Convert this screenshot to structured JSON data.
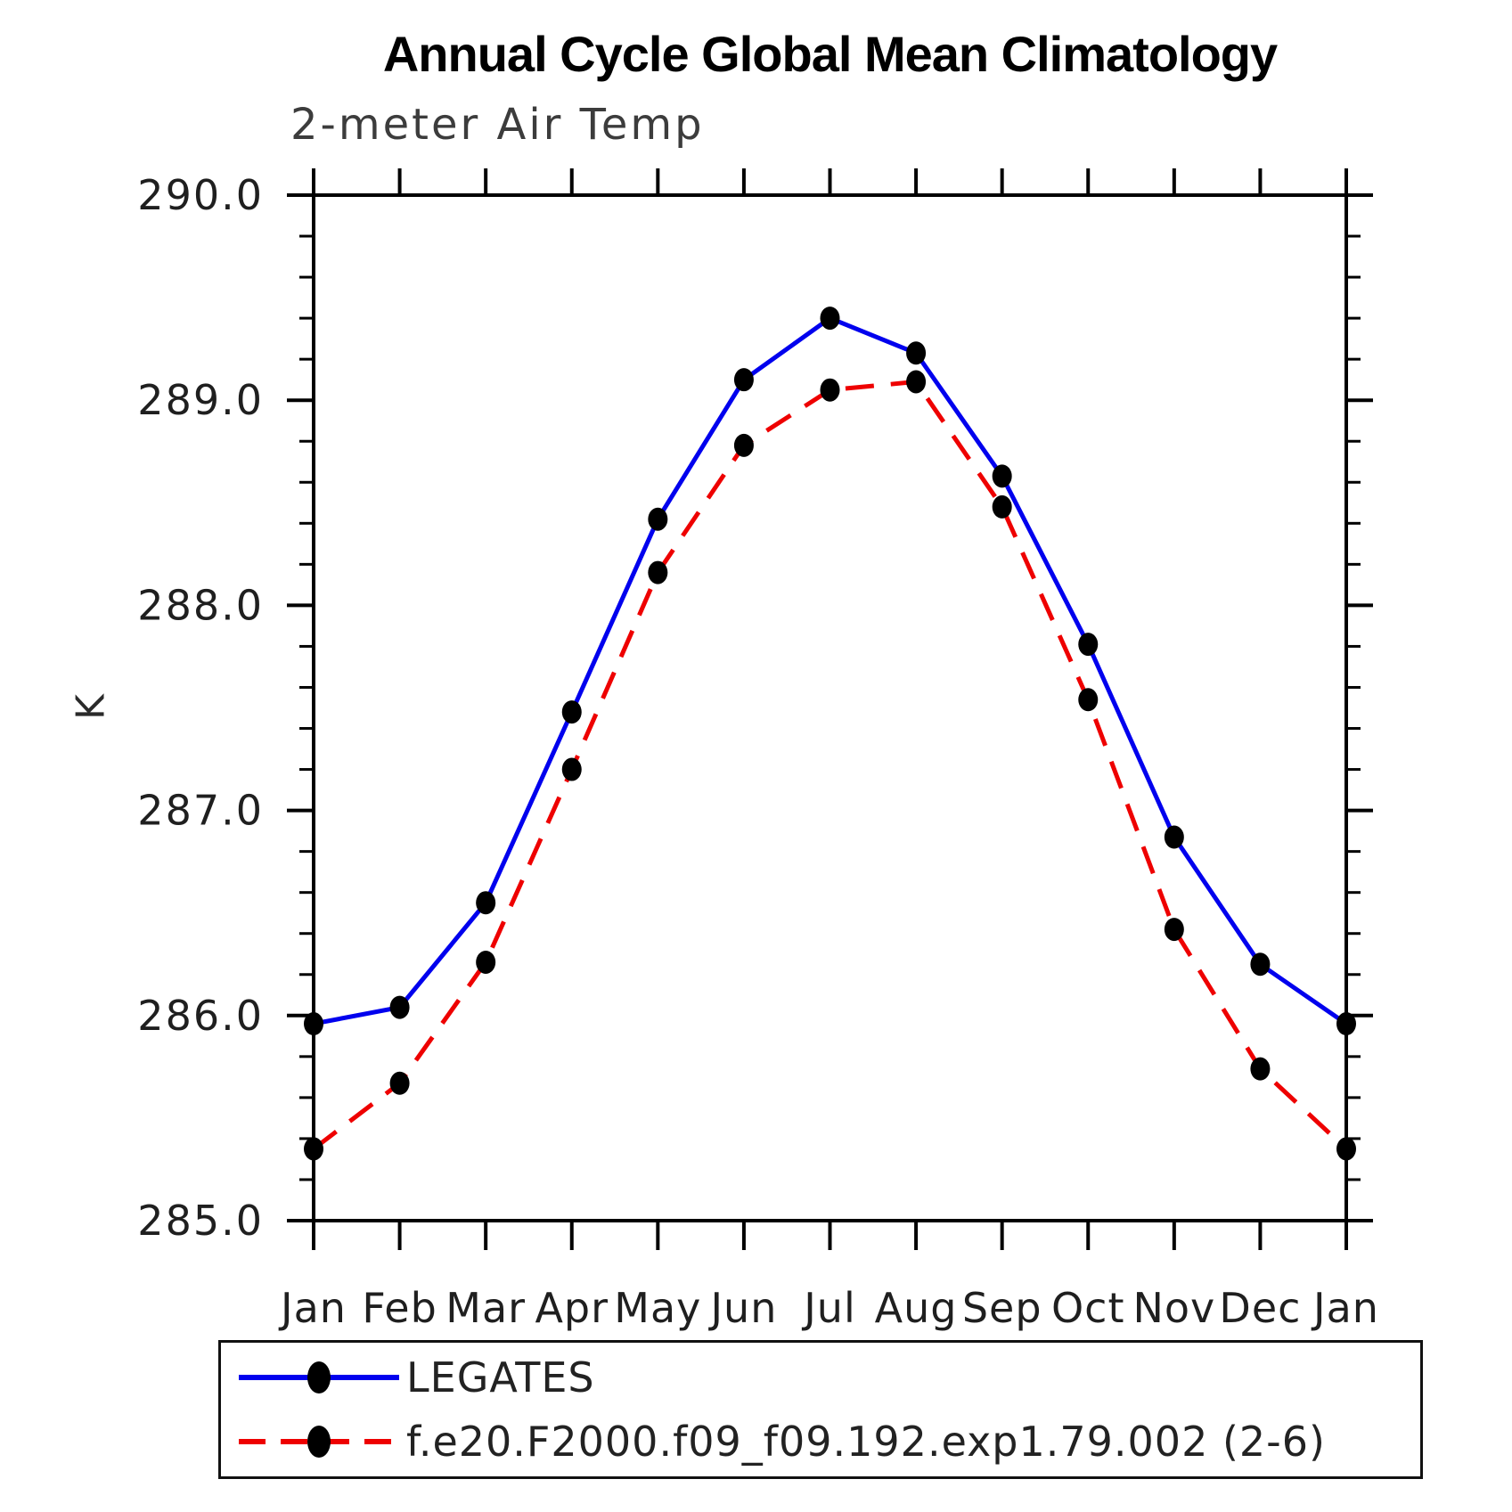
{
  "header": {
    "title": "Annual Cycle Global Mean Climatology",
    "subtitle": "2-meter Air Temp"
  },
  "chart_data": {
    "type": "line",
    "title": "Annual Cycle Global Mean Climatology",
    "subtitle": "2-meter Air Temp",
    "ylabel": "K",
    "xlabel": "",
    "categories": [
      "Jan",
      "Feb",
      "Mar",
      "Apr",
      "May",
      "Jun",
      "Jul",
      "Aug",
      "Sep",
      "Oct",
      "Nov",
      "Dec",
      "Jan"
    ],
    "ylim": [
      285.0,
      290.0
    ],
    "ytick_major_interval": 1.0,
    "ytick_minor_interval": 0.2,
    "ytick_labels": [
      "285.0",
      "286.0",
      "287.0",
      "288.0",
      "289.0",
      "290.0"
    ],
    "grid": false,
    "legend_position": "bottom",
    "axis_color": "#000000",
    "marker_color": "#000000",
    "series": [
      {
        "name": "LEGATES",
        "color": "#0000ee",
        "line_style": "solid",
        "marker": "filled-circle",
        "values": [
          285.96,
          286.04,
          286.55,
          287.48,
          288.42,
          289.1,
          289.4,
          289.23,
          288.63,
          287.81,
          286.87,
          286.25,
          285.96
        ]
      },
      {
        "name": "f.e20.F2000.f09_f09.192.exp1.79.002 (2-6)",
        "color": "#ee0000",
        "line_style": "dashed",
        "marker": "filled-circle",
        "values": [
          285.35,
          285.67,
          286.26,
          287.2,
          288.16,
          288.78,
          289.05,
          289.09,
          288.48,
          287.54,
          286.42,
          285.74,
          285.35
        ]
      }
    ]
  }
}
